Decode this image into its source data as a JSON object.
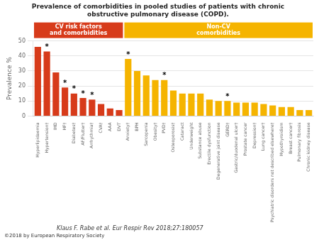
{
  "chart_data": {
    "type": "bar",
    "title": "Prevalence of comorbidities in pooled studies of patients with chronic\nobstructive pulmonary disease (COPD).",
    "ylabel": "Prevalence %",
    "categories": [
      "Hyperlipidaemia",
      "Hypertension†",
      "IHD",
      "HF†",
      "Diabetes†",
      "AF/Flutter†",
      "Arrhythmia†",
      "CVA†",
      "AAA",
      "DVT",
      "Anxiety†",
      "BPH",
      "Sarcopenia",
      "Obesity†",
      "PVD†",
      "Osteoporosis†",
      "Cataract",
      "Underweight",
      "Substance abuse",
      "Erectile dysfunction",
      "Degenerative joint disease",
      "GERD†",
      "Gastric/duodenal ulcer†",
      "Prostate cancer",
      "Depression†",
      "Lung cancer†",
      "Psychiatric disorders not described elsewhere†",
      "Hypothyroidism",
      "Breast cancer†",
      "Pulmonary fibrosis",
      "Chronic kidney disease"
    ],
    "values": [
      46,
      43,
      29,
      19,
      15,
      12,
      11,
      8,
      5,
      4,
      38,
      30,
      27,
      24,
      24,
      17,
      15,
      15,
      15,
      11,
      10,
      10,
      9,
      9,
      9,
      8,
      7,
      6,
      6,
      4,
      4
    ],
    "colors": [
      "#d73b1a",
      "#d73b1a",
      "#d73b1a",
      "#d73b1a",
      "#d73b1a",
      "#d73b1a",
      "#d73b1a",
      "#d73b1a",
      "#d73b1a",
      "#d73b1a",
      "#f5b400",
      "#f5b400",
      "#f5b400",
      "#f5b400",
      "#f5b400",
      "#f5b400",
      "#f5b400",
      "#f5b400",
      "#f5b400",
      "#f5b400",
      "#f5b400",
      "#f5b400",
      "#f5b400",
      "#f5b400",
      "#f5b400",
      "#f5b400",
      "#f5b400",
      "#f5b400",
      "#f5b400",
      "#f5b400",
      "#f5b400"
    ],
    "ylim": [
      0,
      50
    ],
    "yticks": [
      0,
      10,
      20,
      30,
      40,
      50
    ],
    "grid": true,
    "annotations": [
      {
        "text": "*",
        "x": "Hypertension†"
      },
      {
        "text": "*",
        "x": "HF†"
      },
      {
        "text": "*",
        "x": "Diabetes†"
      },
      {
        "text": "*",
        "x": "AF/Flutter†"
      },
      {
        "text": "*",
        "x": "Arrhythmia†"
      },
      {
        "text": "*",
        "x": "Anxiety†"
      },
      {
        "text": "*",
        "x": "PVD†"
      },
      {
        "text": "*",
        "x": "GERD†"
      }
    ],
    "group_labels": [
      {
        "text": "CV risk factors\nand comorbidities",
        "color": "#d73b1a",
        "categories": [
          "Hyperlipidaemia",
          "DVT"
        ]
      },
      {
        "text": "Non-CV\ncomorbidities",
        "color": "#f5b400",
        "categories": [
          "Anxiety†",
          "Chronic kidney disease"
        ]
      }
    ],
    "citation": "Klaus F. Rabe et al. Eur Respir Rev 2018;27:180057",
    "copyright": "©2018 by European Respiratory Society"
  }
}
